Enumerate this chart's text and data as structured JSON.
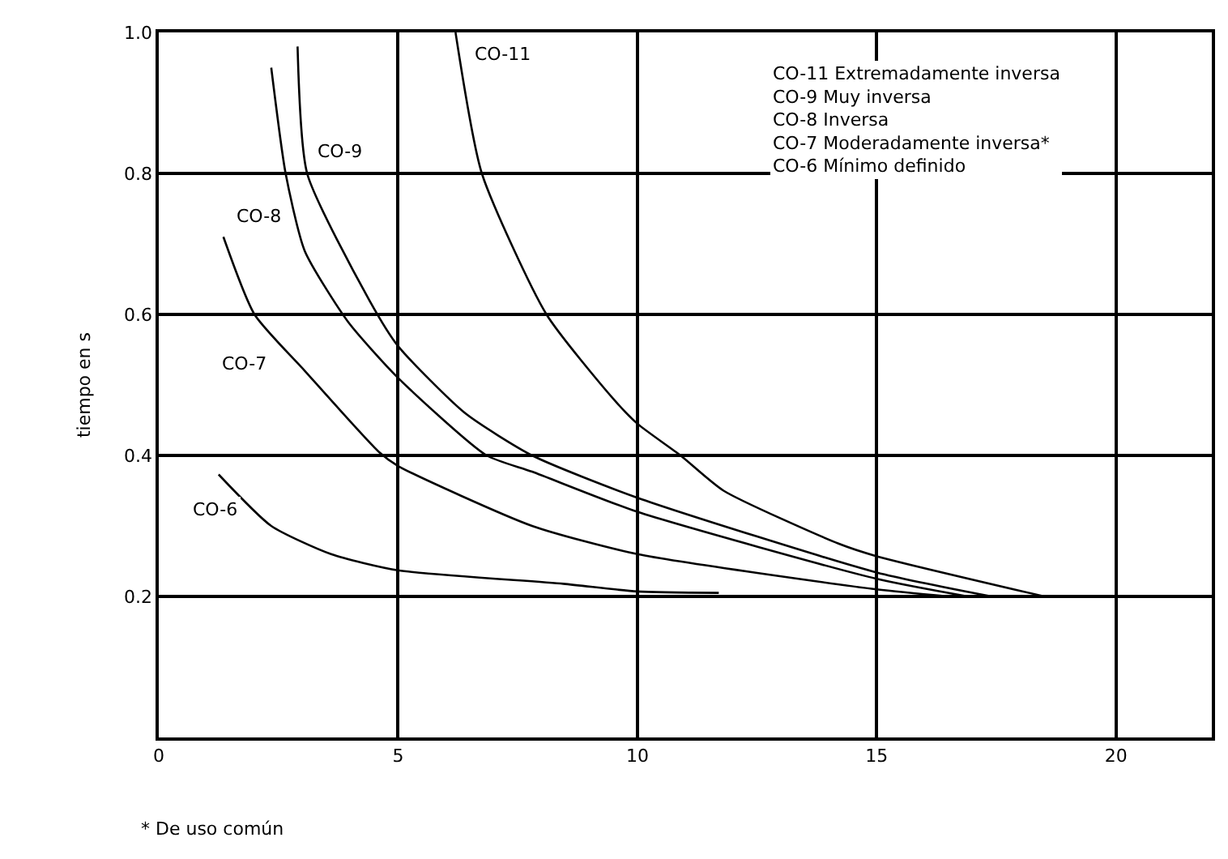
{
  "chart_data": {
    "type": "line",
    "ylabel": "tiempo en s",
    "xlim": [
      0,
      22
    ],
    "ylim": [
      0,
      1.0
    ],
    "xticks": [
      0,
      5,
      10,
      15,
      20
    ],
    "yticks": [
      {
        "value": 0.2,
        "label": "0.2"
      },
      {
        "value": 0.4,
        "label": "0.4"
      },
      {
        "value": 0.6,
        "label": "0.6"
      },
      {
        "value": 0.8,
        "label": "0.8"
      },
      {
        "value": 1.0,
        "label": "1.0"
      }
    ],
    "grid": true,
    "legend": false,
    "marker": "none",
    "line_style": "solid",
    "series": [
      {
        "name": "CO-11",
        "color": "#000000",
        "x": [
          6.2,
          6.75,
          8.1,
          9.5,
          10,
          10.9,
          11.8,
          14.2,
          15,
          18.5
        ],
        "values": [
          1.0,
          0.8,
          0.6,
          0.48,
          0.445,
          0.4,
          0.35,
          0.275,
          0.257,
          0.2
        ]
      },
      {
        "name": "CO-9",
        "color": "#000000",
        "x": [
          2.9,
          3.1,
          4.4,
          5,
          6.4,
          7.8,
          10,
          15,
          17.4
        ],
        "values": [
          0.98,
          0.8,
          0.62,
          0.555,
          0.46,
          0.4,
          0.34,
          0.234,
          0.2
        ]
      },
      {
        "name": "CO-8",
        "color": "#000000",
        "x": [
          2.35,
          2.65,
          3.05,
          3.95,
          5,
          6.85,
          7.8,
          10,
          15,
          16.9
        ],
        "values": [
          0.95,
          0.8,
          0.69,
          0.59,
          0.51,
          0.4,
          0.377,
          0.32,
          0.225,
          0.2
        ]
      },
      {
        "name": "CO-7",
        "color": "#000000",
        "x": [
          1.35,
          2.0,
          3.05,
          4.6,
          5,
          7.8,
          10,
          15,
          16.5
        ],
        "values": [
          0.71,
          0.6,
          0.52,
          0.405,
          0.385,
          0.3,
          0.26,
          0.21,
          0.2
        ]
      },
      {
        "name": "CO-6",
        "color": "#000000",
        "x": [
          1.25,
          2.35,
          3.6,
          5,
          8.45,
          10,
          11.7
        ],
        "values": [
          0.373,
          0.3,
          0.26,
          0.237,
          0.218,
          0.207,
          0.205
        ]
      }
    ],
    "annotations": [
      "CO-11 Extremadamente inversa",
      "CO-9 Muy inversa",
      "CO-8 Inversa",
      "CO-7 Moderadamente inversa*",
      "CO-6 Mínimo definido",
      "* De uso común"
    ]
  }
}
